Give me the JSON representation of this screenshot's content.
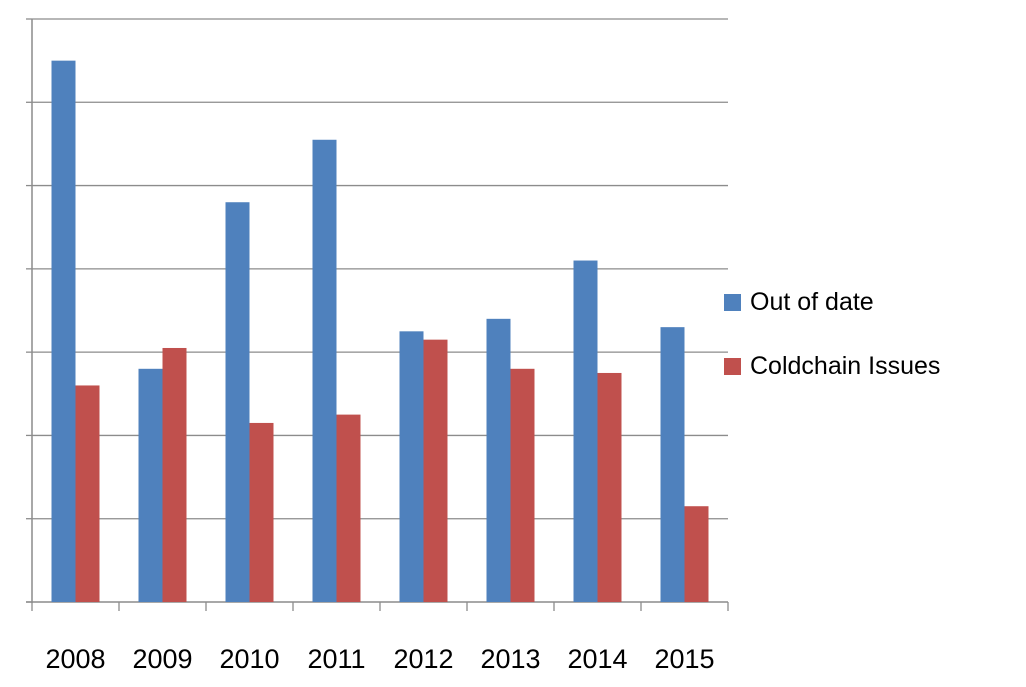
{
  "chart_data": {
    "type": "bar",
    "categories": [
      "2008",
      "2009",
      "2010",
      "2011",
      "2012",
      "2013",
      "2014",
      "2015"
    ],
    "series": [
      {
        "name": "Out of date",
        "color": "#4F81BD",
        "values": [
          6.5,
          2.8,
          4.8,
          5.55,
          3.25,
          3.4,
          4.1,
          3.3
        ]
      },
      {
        "name": "Coldchain Issues",
        "color": "#C0504D",
        "values": [
          2.6,
          3.05,
          2.15,
          2.25,
          3.15,
          2.8,
          2.75,
          1.15
        ]
      }
    ],
    "ylim": [
      0,
      7
    ],
    "grid": true,
    "legend_position": "right",
    "title": "",
    "xlabel": "",
    "ylabel": ""
  },
  "legend": {
    "items": [
      {
        "label": "Out of date",
        "color": "#4F81BD"
      },
      {
        "label": "Coldchain Issues",
        "color": "#C0504D"
      }
    ]
  }
}
